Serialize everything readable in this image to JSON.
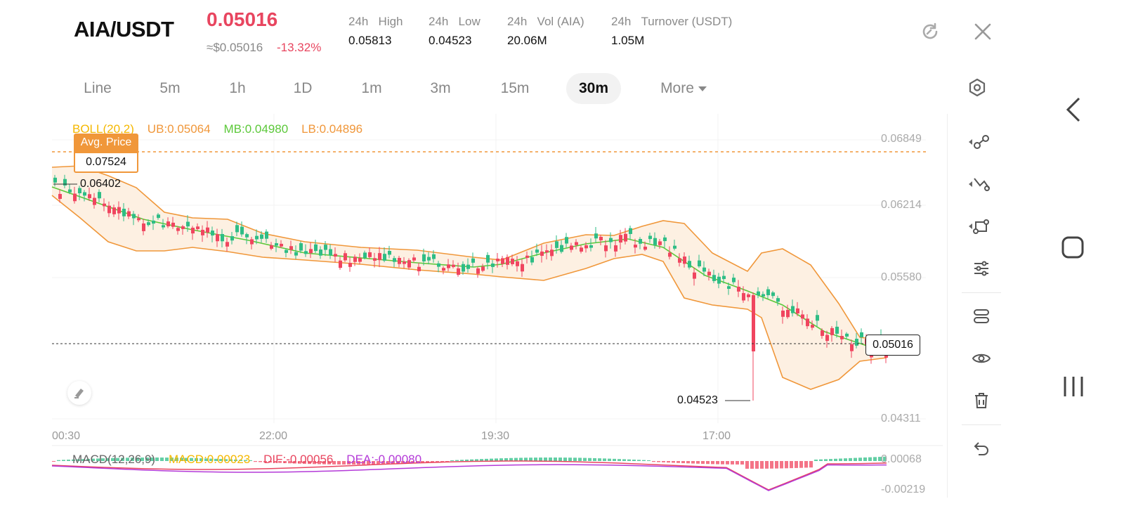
{
  "header": {
    "pair": "AIA/USDT",
    "price": "0.05016",
    "fiat_price": "≈$0.05016",
    "change": "-13.32%",
    "stats": [
      {
        "label_prefix": "24h",
        "label": "High",
        "value": "0.05813"
      },
      {
        "label_prefix": "24h",
        "label": "Low",
        "value": "0.04523"
      },
      {
        "label_prefix": "24h",
        "label": "Vol (AIA)",
        "value": "20.06M"
      },
      {
        "label_prefix": "24h",
        "label": "Turnover (USDT)",
        "value": "1.05M"
      }
    ],
    "refresh_icon": "refresh-icon",
    "close_icon": "close-icon"
  },
  "tabs": [
    {
      "label": "Line"
    },
    {
      "label": "5m"
    },
    {
      "label": "1h"
    },
    {
      "label": "1D"
    },
    {
      "label": "1m"
    },
    {
      "label": "3m"
    },
    {
      "label": "15m"
    },
    {
      "label": "30m",
      "active": true
    },
    {
      "label": "More"
    }
  ],
  "chart": {
    "boll_label": "BOLL(20,2)",
    "ub": "UB:0.05064",
    "mb": "MB:0.04980",
    "lb": "LB:0.04896",
    "avg_price_label": "Avg. Price",
    "avg_price_value": "0.07524",
    "price_axis": [
      "0.06849",
      "0.06214",
      "0.05580",
      "0.04311"
    ],
    "time_axis": [
      "00:30",
      "22:00",
      "19:30",
      "17:00"
    ],
    "high_marker": "0.06402",
    "low_marker": "0.04523",
    "current_price_tag": "0.05016",
    "macd_label": "MACD(12,26,9)",
    "macd_value": "MACD:0.00023",
    "dif_value": "DIF:-0.00056",
    "dea_value": "DEA:-0.00080",
    "macd_axis": [
      "0.00068",
      "-0.00219"
    ],
    "colors": {
      "up": "#2ebd85",
      "down": "#f0455f",
      "boll_band": "#f0973a",
      "mb": "#5cc83a",
      "boll_label": "#f5b800",
      "macd_label": "#f5b800",
      "dif": "#e8455f",
      "dea": "#b43ad8"
    }
  },
  "sidebar": {
    "tools": [
      "node-line-icon",
      "trend-line-icon",
      "shape-tool-icon",
      "indicator-settings-icon",
      "layers-icon",
      "visibility-eye-icon",
      "delete-trash-icon",
      "undo-icon"
    ]
  },
  "system_nav": [
    "back-chevron-icon",
    "home-square-icon",
    "recents-icon"
  ]
}
